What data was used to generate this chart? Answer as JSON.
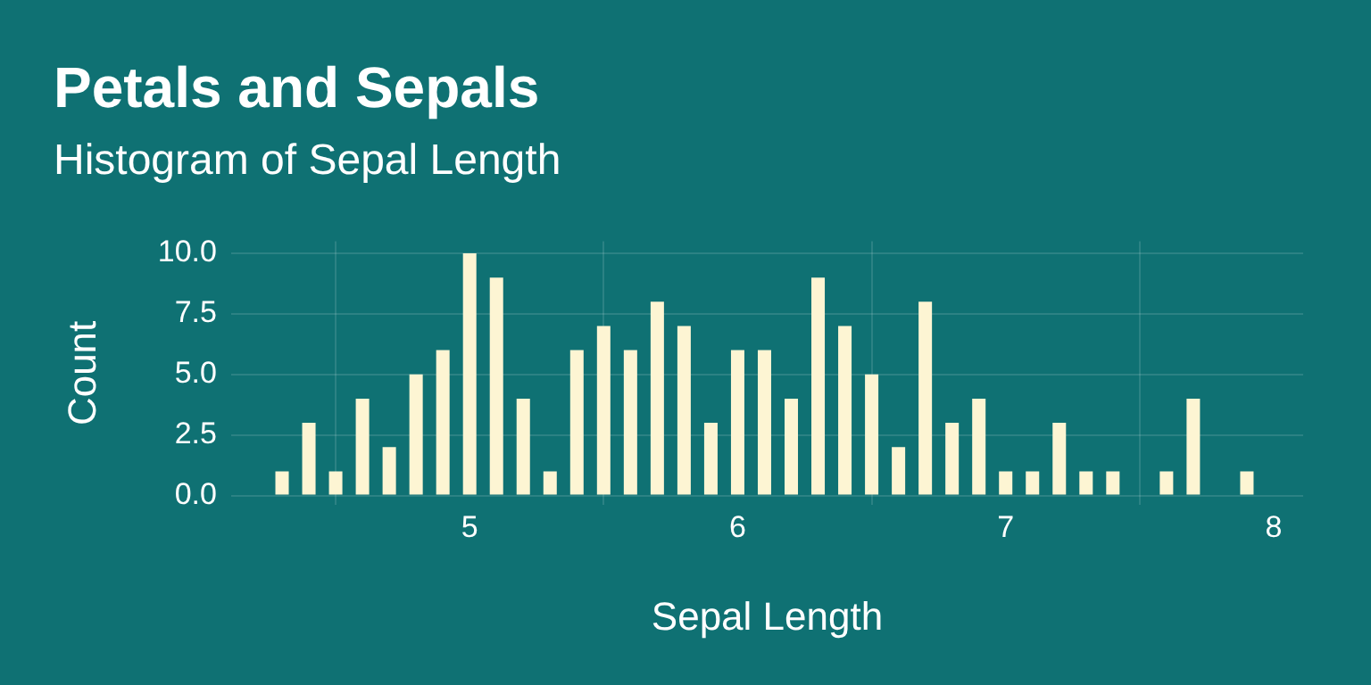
{
  "chart_data": {
    "type": "bar",
    "title": "Petals and Sepals",
    "subtitle": "Histogram of Sepal Length",
    "xlabel": "Sepal Length",
    "ylabel": "Count",
    "x": [
      4.3,
      4.4,
      4.5,
      4.6,
      4.7,
      4.8,
      4.9,
      5.0,
      5.1,
      5.2,
      5.3,
      5.4,
      5.5,
      5.6,
      5.7,
      5.8,
      5.9,
      6.0,
      6.1,
      6.2,
      6.3,
      6.4,
      6.5,
      6.6,
      6.7,
      6.8,
      6.9,
      7.0,
      7.1,
      7.2,
      7.3,
      7.4,
      7.6,
      7.7,
      7.9
    ],
    "values": [
      1,
      3,
      1,
      4,
      2,
      5,
      6,
      10,
      9,
      4,
      1,
      6,
      7,
      6,
      8,
      7,
      3,
      6,
      6,
      4,
      9,
      7,
      5,
      2,
      8,
      3,
      4,
      1,
      1,
      3,
      1,
      1,
      1,
      4,
      1
    ],
    "color": "#fdf5d3",
    "xlim": [
      4.11,
      8.11
    ],
    "xticks": [
      5,
      6,
      7,
      8
    ],
    "ylim": [
      -0.4,
      10.5
    ],
    "yticks": [
      {
        "value": 0,
        "label": "0.0"
      },
      {
        "value": 2.5,
        "label": "2.5"
      },
      {
        "value": 5,
        "label": "5.0"
      },
      {
        "value": 7.5,
        "label": "7.5"
      },
      {
        "value": 10,
        "label": "10.0"
      }
    ],
    "grid": true,
    "legend": false
  }
}
